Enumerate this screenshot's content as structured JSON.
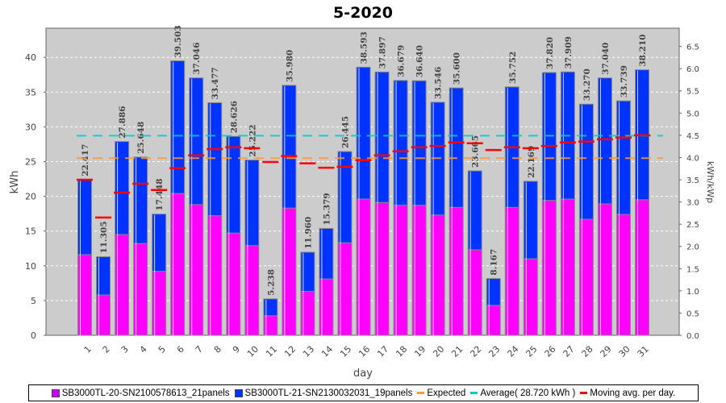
{
  "chart_data": {
    "type": "bar",
    "title": "5-2020",
    "xlabel": "day",
    "ylabel": "kWh",
    "y2label": "kWh/kWp",
    "ylim": [
      0,
      44.2
    ],
    "y2lim": [
      0,
      6.91
    ],
    "yticks": [
      "0",
      "5",
      "10",
      "15",
      "20",
      "25",
      "30",
      "35",
      "40"
    ],
    "y2ticks": [
      "0.0",
      "0.5",
      "1.0",
      "1.5",
      "2.0",
      "2.5",
      "3.0",
      "3.5",
      "4.0",
      "4.5",
      "5.0",
      "5.5",
      "6.0",
      "6.5"
    ],
    "categories": [
      "1",
      "2",
      "3",
      "4",
      "5",
      "6",
      "7",
      "8",
      "9",
      "10",
      "11",
      "12",
      "13",
      "14",
      "15",
      "16",
      "17",
      "18",
      "19",
      "20",
      "21",
      "22",
      "23",
      "24",
      "25",
      "26",
      "27",
      "28",
      "29",
      "30",
      "31"
    ],
    "totals_labels": [
      "22.417",
      "11.305",
      "27.886",
      "25.648",
      "17.448",
      "39.503",
      "37.046",
      "33.477",
      "28.626",
      "25.222",
      "5.238",
      "35.980",
      "11.960",
      "15.379",
      "26.445",
      "38.593",
      "37.897",
      "36.679",
      "36.640",
      "33.546",
      "35.600",
      "23.665",
      "8.167",
      "35.752",
      "22.169",
      "37.820",
      "37.909",
      "33.270",
      "37.040",
      "33.739",
      "38.210"
    ],
    "series": [
      {
        "name": "SB3000TL-20-SN2100578613_21panels",
        "color": "#ff00ff",
        "type": "stacked-bar",
        "values": [
          11.6,
          5.8,
          14.5,
          13.2,
          9.2,
          20.4,
          18.8,
          17.2,
          14.7,
          12.9,
          2.8,
          18.3,
          6.3,
          8.1,
          13.3,
          19.6,
          19.1,
          18.7,
          18.7,
          17.3,
          18.4,
          12.3,
          4.3,
          18.4,
          11.0,
          19.4,
          19.6,
          16.7,
          18.9,
          17.4,
          19.5
        ]
      },
      {
        "name": "SB3000TL-21-SN2130032031_19panels",
        "color": "#0033ff",
        "type": "stacked-bar",
        "values": [
          10.817,
          5.505,
          13.386,
          12.448,
          8.248,
          19.103,
          18.246,
          16.277,
          13.926,
          12.322,
          2.438,
          17.68,
          5.66,
          7.279,
          13.145,
          18.993,
          18.797,
          17.979,
          17.94,
          16.246,
          17.2,
          11.365,
          3.867,
          17.352,
          11.169,
          18.42,
          18.309,
          16.57,
          18.14,
          16.339,
          18.71
        ]
      },
      {
        "name": "Expected",
        "color": "#ff9933",
        "type": "hline",
        "value": 25.5
      },
      {
        "name": "Average( 28.720 kWh )",
        "color": "#00cccc",
        "type": "hline",
        "value": 28.72
      },
      {
        "name": "Moving avg. per day.",
        "color": "#ff0000",
        "type": "marker",
        "axis": "y2",
        "values": [
          3.5,
          2.65,
          3.21,
          3.41,
          3.27,
          3.76,
          4.05,
          4.19,
          4.23,
          4.21,
          3.9,
          4.03,
          3.87,
          3.77,
          3.79,
          3.94,
          4.05,
          4.14,
          4.23,
          4.26,
          4.34,
          4.32,
          4.17,
          4.23,
          4.21,
          4.26,
          4.34,
          4.36,
          4.41,
          4.45,
          4.5
        ]
      }
    ],
    "grid": true,
    "legend": "bottom"
  }
}
